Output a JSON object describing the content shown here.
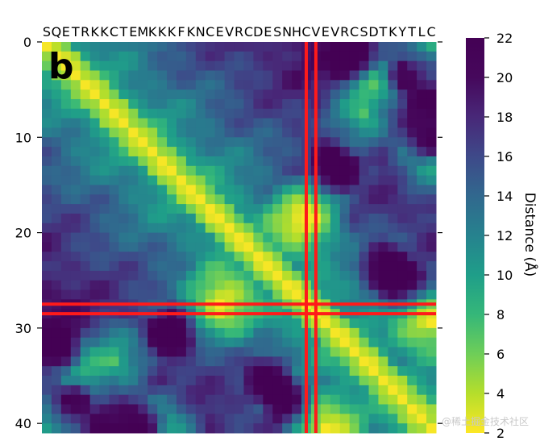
{
  "chart_data": {
    "type": "heatmap",
    "panel_label": "b",
    "sequence": "SQETRKKCTEMKKKFKNCEVRCDESNHCVEVRCSDTKYTLC",
    "y_ticks": [
      0,
      10,
      20,
      30,
      40
    ],
    "y_tick_labels": [
      "0",
      "10",
      "20",
      "30",
      "40"
    ],
    "n_residues": 41,
    "colorbar": {
      "label": "Distance (Å)",
      "min": 2,
      "max": 22,
      "ticks": [
        2,
        4,
        6,
        8,
        10,
        12,
        14,
        16,
        18,
        20,
        22
      ],
      "tick_labels": [
        "2",
        "4",
        "6",
        "8",
        "10",
        "12",
        "14",
        "16",
        "18",
        "20",
        "22"
      ]
    },
    "highlight_lines": {
      "color": "#ff1a1a",
      "vertical_residues": [
        27.5,
        28.5
      ],
      "horizontal_residues": [
        27.5,
        28.5
      ]
    },
    "model": {
      "description": "pairwise C-alpha distance map, values in Angstrom",
      "base_distance_per_residue": 3.8,
      "saturation_distance": 22,
      "local_contacts": [
        [
          0,
          40
        ],
        [
          12,
          40
        ],
        [
          18,
          27
        ],
        [
          29,
          40
        ],
        [
          2,
          35
        ],
        [
          7,
          33
        ]
      ],
      "far_regions": [
        [
          1,
          32
        ],
        [
          2,
          37
        ],
        [
          10,
          40
        ],
        [
          13,
          30
        ],
        [
          23,
          35
        ],
        [
          25,
          37
        ]
      ]
    }
  },
  "watermark": "@稀土掘金技术社区"
}
